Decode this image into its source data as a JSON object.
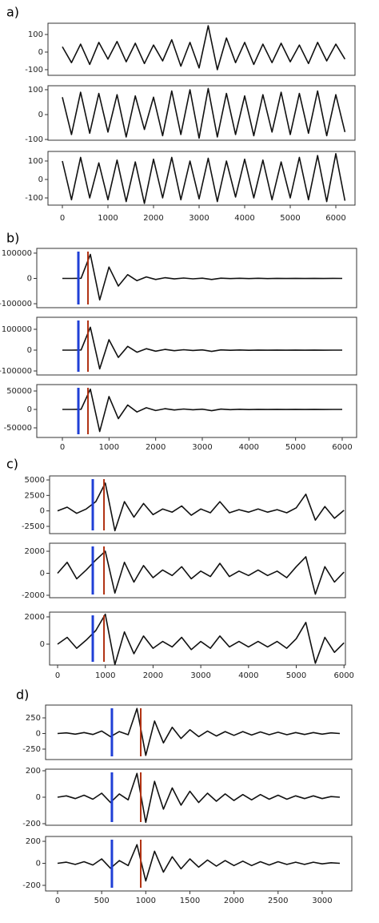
{
  "chart_data": [
    {
      "type": "line",
      "label": "a)",
      "color": "#111111",
      "grid": false,
      "xlim": [
        -316,
        6421
      ],
      "xticks": [
        0,
        1000,
        2000,
        3000,
        4000,
        5000,
        6000
      ],
      "x": [
        0,
        200,
        400,
        600,
        800,
        1000,
        1200,
        1400,
        1600,
        1800,
        2000,
        2200,
        2400,
        2600,
        2800,
        3000,
        3200,
        3400,
        3600,
        3800,
        4000,
        4200,
        4400,
        4600,
        4800,
        5000,
        5200,
        5400,
        5600,
        5800,
        6000,
        6200
      ],
      "picks": [],
      "subplots": [
        {
          "ylim": [
            -132,
            164
          ],
          "yticks": [
            -100,
            0,
            100
          ],
          "values": [
            30,
            -60,
            45,
            -70,
            55,
            -40,
            60,
            -55,
            50,
            -65,
            40,
            -50,
            70,
            -80,
            55,
            -90,
            150,
            -100,
            80,
            -60,
            55,
            -70,
            45,
            -60,
            50,
            -55,
            40,
            -65,
            55,
            -50,
            45,
            -40
          ]
        },
        {
          "ylim": [
            -103,
            116
          ],
          "yticks": [
            -100,
            0,
            100
          ],
          "values": [
            70,
            -80,
            90,
            -75,
            85,
            -70,
            80,
            -90,
            75,
            -60,
            70,
            -85,
            95,
            -80,
            100,
            -95,
            105,
            -90,
            85,
            -80,
            75,
            -85,
            80,
            -70,
            90,
            -80,
            85,
            -75,
            95,
            -85,
            80,
            -70
          ]
        },
        {
          "ylim": [
            -139,
            152
          ],
          "yticks": [
            -100,
            0,
            100
          ],
          "values": [
            100,
            -110,
            120,
            -100,
            90,
            -110,
            105,
            -120,
            95,
            -130,
            110,
            -100,
            120,
            -110,
            100,
            -105,
            115,
            -120,
            100,
            -95,
            110,
            -100,
            105,
            -110,
            95,
            -100,
            120,
            -110,
            130,
            -120,
            140,
            -115
          ]
        }
      ]
    },
    {
      "type": "line",
      "label": "b)",
      "color": "#111111",
      "grid": false,
      "xlim": [
        -549,
        6309
      ],
      "xticks": [
        0,
        1000,
        2000,
        3000,
        4000,
        5000,
        6000
      ],
      "x": [
        0,
        200,
        400,
        600,
        800,
        1000,
        1200,
        1400,
        1600,
        1800,
        2000,
        2200,
        2400,
        2600,
        2800,
        3000,
        3200,
        3400,
        3600,
        3800,
        4000,
        4200,
        4400,
        4600,
        4800,
        5000,
        5200,
        5400,
        5600,
        5800,
        6000
      ],
      "picks": [
        {
          "x": 343,
          "color": "#1f3fd6"
        },
        {
          "x": 549,
          "color": "#b03010"
        }
      ],
      "subplots": [
        {
          "ylim": [
            -115600,
            118750
          ],
          "yticks": [
            -100000,
            0,
            100000
          ],
          "values": [
            0,
            0,
            500,
            95000,
            -85000,
            45000,
            -30000,
            15000,
            -9000,
            6000,
            -4000,
            3000,
            -2000,
            1500,
            -1500,
            1000,
            -4000,
            1000,
            -800,
            600,
            -600,
            500,
            -500,
            400,
            -400,
            300,
            -300,
            300,
            -200,
            200,
            -100
          ]
        },
        {
          "ylim": [
            -119200,
            157700
          ],
          "yticks": [
            -100000,
            0,
            100000
          ],
          "values": [
            0,
            0,
            600,
            110000,
            -90000,
            50000,
            -35000,
            18000,
            -10000,
            7000,
            -5000,
            3500,
            -2500,
            2000,
            -1500,
            1200,
            -6000,
            1200,
            -900,
            700,
            -600,
            500,
            -500,
            400,
            -400,
            300,
            -300,
            300,
            -200,
            200,
            -100
          ]
        },
        {
          "ylim": [
            -76100,
            67400
          ],
          "yticks": [
            -50000,
            0,
            50000
          ],
          "values": [
            0,
            0,
            400,
            55000,
            -60000,
            35000,
            -25000,
            12000,
            -7000,
            4500,
            -3000,
            2000,
            -1500,
            1000,
            -800,
            700,
            -3500,
            800,
            -600,
            400,
            -400,
            300,
            -300,
            300,
            -200,
            200,
            -200,
            150,
            -150,
            100,
            -100
          ]
        }
      ]
    },
    {
      "type": "line",
      "label": "c)",
      "color": "#111111",
      "grid": false,
      "xlim": [
        -168,
        6030
      ],
      "xticks": [
        0,
        1000,
        2000,
        3000,
        4000,
        5000,
        6000
      ],
      "x": [
        0,
        200,
        400,
        600,
        800,
        1000,
        1200,
        1400,
        1600,
        1800,
        2000,
        2200,
        2400,
        2600,
        2800,
        3000,
        3200,
        3400,
        3600,
        3800,
        4000,
        4200,
        4400,
        4600,
        4800,
        5000,
        5200,
        5400,
        5600,
        5800,
        6000
      ],
      "picks": [
        {
          "x": 737,
          "color": "#1f3fd6"
        },
        {
          "x": 972,
          "color": "#b03010"
        }
      ],
      "subplots": [
        {
          "ylim": [
            -3670,
            5650
          ],
          "yticks": [
            -2500,
            0,
            2500,
            5000
          ],
          "values": [
            0,
            600,
            -400,
            300,
            1500,
            4500,
            -3200,
            1500,
            -1000,
            1200,
            -600,
            300,
            -200,
            800,
            -700,
            300,
            -300,
            1500,
            -300,
            200,
            -200,
            300,
            -200,
            200,
            -300,
            500,
            2700,
            -1500,
            700,
            -1200,
            100
          ]
        },
        {
          "ylim": [
            -2220,
            2730
          ],
          "yticks": [
            -2000,
            0,
            2000
          ],
          "values": [
            0,
            1000,
            -500,
            300,
            1200,
            2000,
            -1800,
            1000,
            -800,
            700,
            -400,
            300,
            -200,
            600,
            -500,
            200,
            -300,
            900,
            -300,
            200,
            -200,
            300,
            -200,
            200,
            -400,
            600,
            1500,
            -1900,
            600,
            -800,
            100
          ]
        },
        {
          "ylim": [
            -1530,
            2350
          ],
          "yticks": [
            0,
            2000
          ],
          "values": [
            0,
            500,
            -300,
            300,
            1000,
            2200,
            -1500,
            900,
            -700,
            600,
            -300,
            200,
            -200,
            500,
            -400,
            200,
            -300,
            600,
            -200,
            200,
            -200,
            200,
            -200,
            200,
            -300,
            400,
            1600,
            -1400,
            500,
            -600,
            100
          ]
        }
      ]
    },
    {
      "type": "line",
      "label": "d)",
      "color": "#111111",
      "grid": false,
      "xlim": [
        -136,
        3336
      ],
      "xticks": [
        0,
        500,
        1000,
        1500,
        2000,
        2500,
        3000
      ],
      "x": [
        0,
        100,
        200,
        300,
        400,
        500,
        600,
        700,
        800,
        900,
        1000,
        1100,
        1200,
        1300,
        1400,
        1500,
        1600,
        1700,
        1800,
        1900,
        2000,
        2100,
        2200,
        2300,
        2400,
        2500,
        2600,
        2700,
        2800,
        2900,
        3000,
        3100,
        3200
      ],
      "picks": [
        {
          "x": 616,
          "color": "#1f3fd6"
        },
        {
          "x": 943,
          "color": "#b03010"
        }
      ],
      "subplots": [
        {
          "ylim": [
            -417,
            455
          ],
          "yticks": [
            -250,
            0,
            250
          ],
          "values": [
            0,
            10,
            -10,
            15,
            -15,
            40,
            -50,
            30,
            -20,
            400,
            -350,
            200,
            -150,
            100,
            -80,
            60,
            -50,
            40,
            -40,
            30,
            -30,
            30,
            -25,
            25,
            -20,
            20,
            -20,
            15,
            -15,
            15,
            -10,
            10,
            0
          ]
        },
        {
          "ylim": [
            -212,
            212
          ],
          "yticks": [
            -200,
            0,
            200
          ],
          "values": [
            0,
            10,
            -10,
            15,
            -15,
            30,
            -40,
            25,
            -20,
            180,
            -190,
            120,
            -90,
            70,
            -60,
            45,
            -40,
            30,
            -30,
            25,
            -25,
            20,
            -20,
            20,
            -15,
            15,
            -15,
            10,
            -10,
            10,
            -10,
            5,
            0
          ]
        },
        {
          "ylim": [
            -251,
            244
          ],
          "yticks": [
            -200,
            0,
            200
          ],
          "values": [
            0,
            10,
            -10,
            15,
            -15,
            40,
            -45,
            25,
            -20,
            170,
            -160,
            110,
            -80,
            60,
            -50,
            40,
            -35,
            30,
            -25,
            25,
            -20,
            20,
            -20,
            15,
            -15,
            15,
            -10,
            10,
            -10,
            10,
            -5,
            5,
            0
          ]
        }
      ]
    }
  ]
}
